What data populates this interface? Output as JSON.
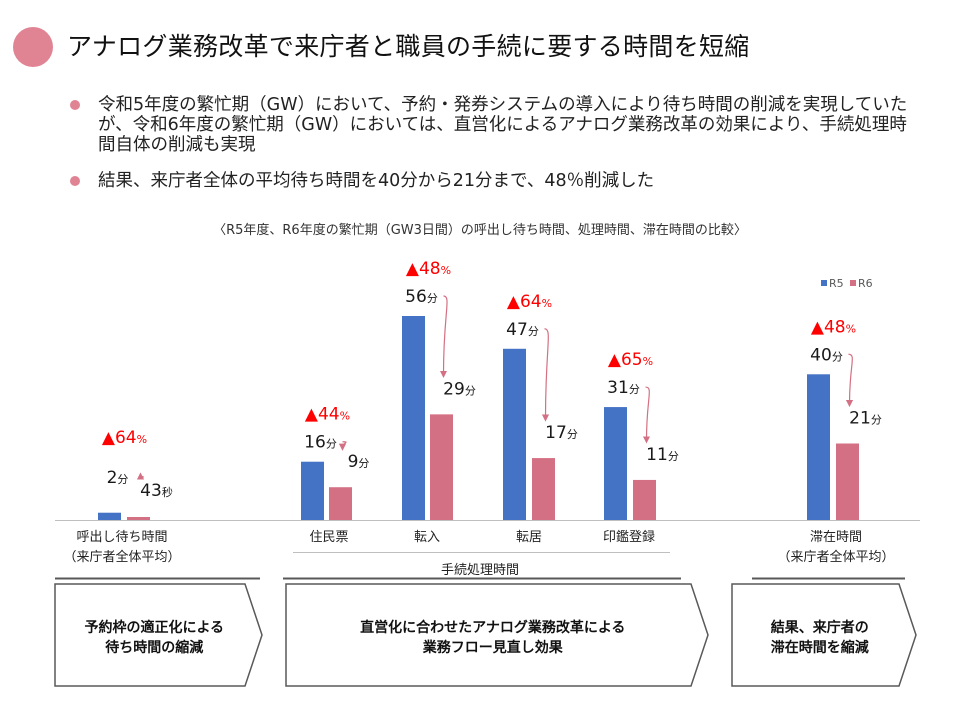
{
  "header": {
    "title": "アナログ業務改革で来庁者と職員の手続に要する時間を短縮",
    "title_dot_color": "#e08494"
  },
  "bullets": [
    {
      "text": "令和5年度の繁忙期（GW）において、予約・発券システムの導入により待ち時間の削減を実現していたが、令和6年度の繁忙期（GW）においては、直営化によるアナログ業務改革の効果により、手続処理時間自体の削減も実現"
    },
    {
      "text": "結果、来庁者全体の平均待ち時間を40分から21分まで、48％削減した"
    }
  ],
  "chart_data": {
    "type": "bar",
    "title": "〈R5年度、R6年度の繁忙期（GW3日間）の呼出し待ち時間、処理時間、滞在時間の比較〉",
    "xlabel": "",
    "ylabel": "",
    "unit": "分",
    "ylim": [
      0,
      60
    ],
    "grid": false,
    "legend_position": "top-right",
    "categories": [
      "呼出し待ち時間\n（来庁者全体平均）",
      "住民票",
      "転入",
      "転居",
      "印鑑登録",
      "滞在時間\n（来庁者全体平均）"
    ],
    "group_label": {
      "text": "手続処理時間",
      "covers": [
        "住民票",
        "転入",
        "転居",
        "印鑑登録"
      ]
    },
    "series": [
      {
        "name": "R5",
        "color": "#4472c4",
        "values": [
          2,
          16,
          56,
          47,
          31,
          40
        ],
        "labels": [
          {
            "num": "2",
            "unit": "分"
          },
          {
            "num": "16",
            "unit": "分"
          },
          {
            "num": "56",
            "unit": "分"
          },
          {
            "num": "47",
            "unit": "分"
          },
          {
            "num": "31",
            "unit": "分"
          },
          {
            "num": "40",
            "unit": "分"
          }
        ]
      },
      {
        "name": "R6",
        "color": "#d47083",
        "values": [
          0.717,
          9,
          29,
          17,
          11,
          21
        ],
        "labels": [
          {
            "num": "43",
            "unit": "秒"
          },
          {
            "num": "9",
            "unit": "分"
          },
          {
            "num": "29",
            "unit": "分"
          },
          {
            "num": "17",
            "unit": "分"
          },
          {
            "num": "11",
            "unit": "分"
          },
          {
            "num": "21",
            "unit": "分"
          }
        ]
      }
    ],
    "reductions": [
      {
        "num": "▲64",
        "unit": "%"
      },
      {
        "num": "▲44",
        "unit": "%"
      },
      {
        "num": "▲48",
        "unit": "%"
      },
      {
        "num": "▲64",
        "unit": "%"
      },
      {
        "num": "▲65",
        "unit": "%"
      },
      {
        "num": "▲48",
        "unit": "%"
      }
    ],
    "reduction_color": "#ff0000",
    "arrow_color": "#d47083"
  },
  "flow": [
    {
      "text": "予約枠の適正化による\n待ち時間の縮減"
    },
    {
      "text": "直営化に合わせたアナログ業務改革による\n業務フロー見直し効果"
    },
    {
      "text": "結果、来庁者の\n滞在時間を縮減"
    }
  ]
}
